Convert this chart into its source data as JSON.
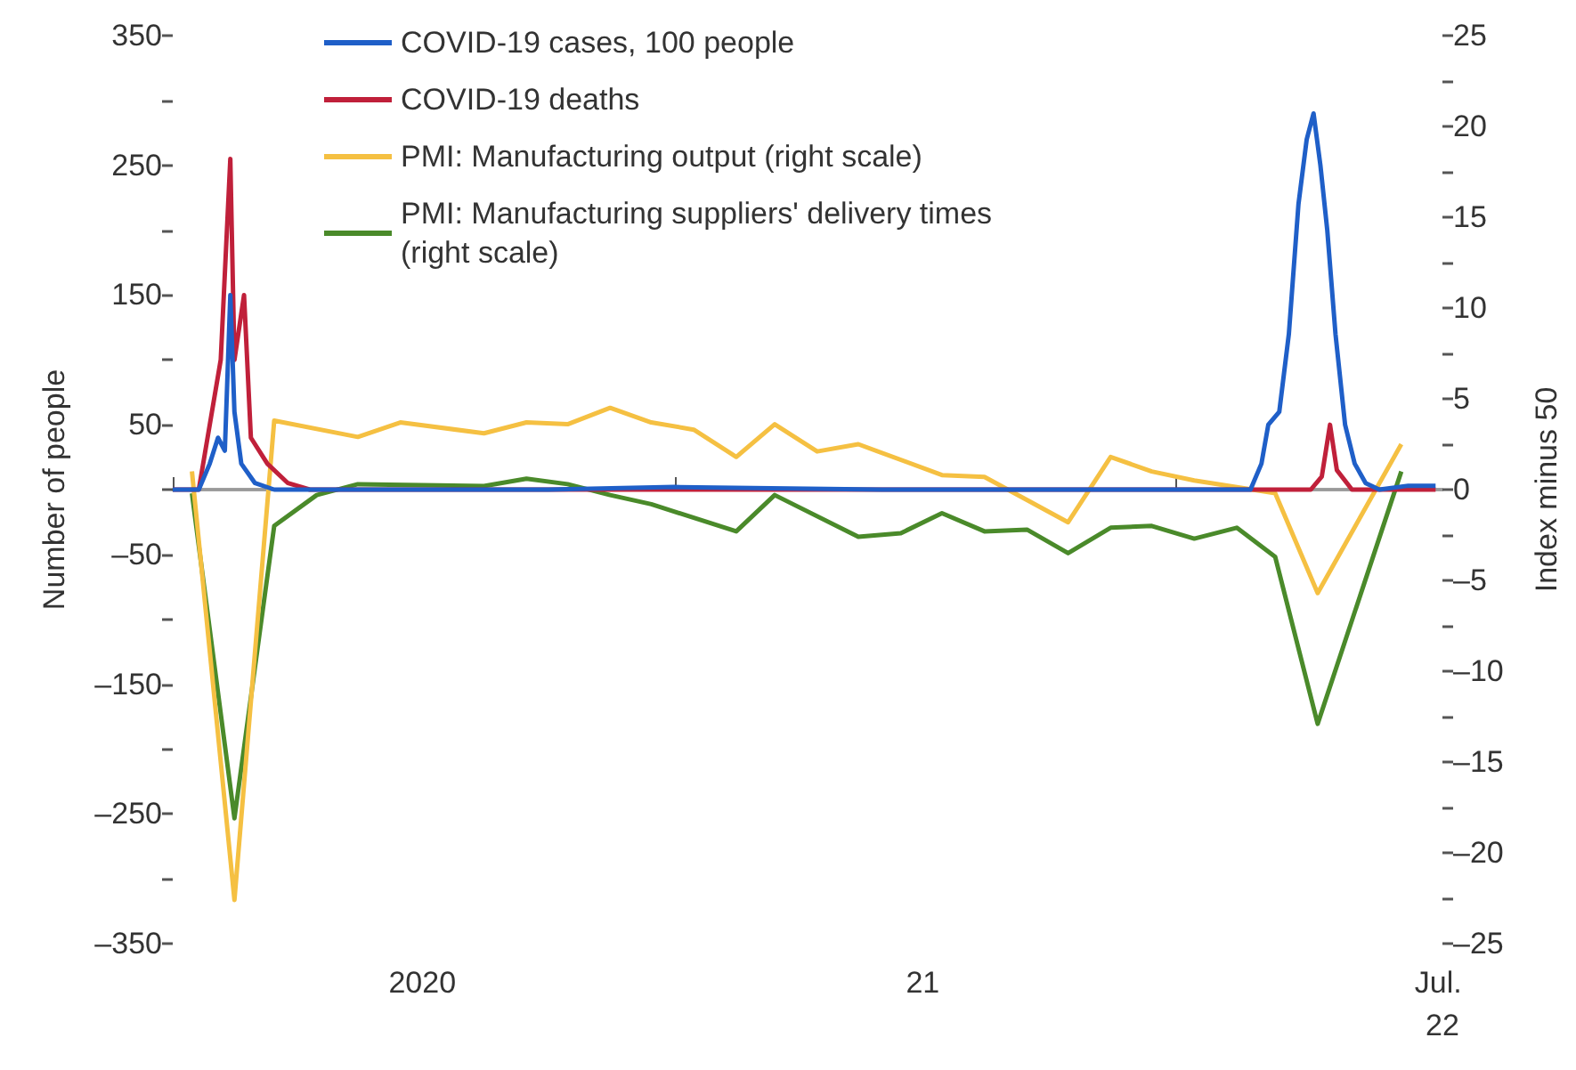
{
  "chart_data": {
    "type": "line",
    "xlabel": null,
    "ylabel": "Number of people",
    "y2label": "Index minus 50",
    "xlim": [
      "2020-01-01",
      "2022-07-15"
    ],
    "xticks": [
      {
        "value": "2020-01-01",
        "label": null
      },
      {
        "value": "2020-07-01",
        "label": "2020"
      },
      {
        "value": "2021-01-01",
        "label": null
      },
      {
        "value": "2021-07-01",
        "label": "21"
      },
      {
        "value": "2022-01-01",
        "label": null
      },
      {
        "value": "2022-07-15",
        "label": "Jul. 22"
      }
    ],
    "ylim": [
      -350,
      350
    ],
    "yticks": [
      {
        "value": -350,
        "label": "–350"
      },
      {
        "value": -300,
        "label": null
      },
      {
        "value": -250,
        "label": "–250"
      },
      {
        "value": -200,
        "label": null
      },
      {
        "value": -150,
        "label": "–150"
      },
      {
        "value": -100,
        "label": null
      },
      {
        "value": -50,
        "label": "–50"
      },
      {
        "value": 0,
        "label": null
      },
      50,
      {
        "value": 100,
        "label": null
      },
      150,
      {
        "value": 200,
        "label": null
      },
      250,
      {
        "value": 300,
        "label": null
      },
      350
    ],
    "y2lim": [
      -25,
      25
    ],
    "y2ticks": [
      {
        "value": -25,
        "label": "–25"
      },
      {
        "value": -22.5,
        "label": null
      },
      {
        "value": -20,
        "label": "–20"
      },
      {
        "value": -17.5,
        "label": null
      },
      {
        "value": -15,
        "label": "–15"
      },
      {
        "value": -12.5,
        "label": null
      },
      {
        "value": -10,
        "label": "–10"
      },
      {
        "value": -7.5,
        "label": null
      },
      {
        "value": -5,
        "label": "–5"
      },
      {
        "value": -2.5,
        "label": null
      },
      0,
      {
        "value": 2.5,
        "label": null
      },
      5,
      {
        "value": 7.5,
        "label": null
      },
      10,
      {
        "value": 12.5,
        "label": null
      },
      15,
      {
        "value": 17.5,
        "label": null
      },
      20,
      {
        "value": 22.5,
        "label": null
      },
      25
    ],
    "legend": "top left",
    "grid": false,
    "ref_lines": [
      {
        "axis": "y",
        "value": 0,
        "label": null,
        "color": "#999999"
      }
    ],
    "series": [
      {
        "name": "COVID-19 cases, 100 people",
        "color": "#1f5fc8",
        "x": [
          "2020-01-01",
          "2020-01-20",
          "2020-01-28",
          "2020-02-03",
          "2020-02-08",
          "2020-02-12",
          "2020-02-15",
          "2020-02-20",
          "2020-03-01",
          "2020-03-15",
          "2020-10-01",
          "2021-01-01",
          "2021-06-01",
          "2022-02-25",
          "2022-03-05",
          "2022-03-10",
          "2022-03-18",
          "2022-03-25",
          "2022-04-01",
          "2022-04-07",
          "2022-04-12",
          "2022-04-17",
          "2022-04-22",
          "2022-04-28",
          "2022-05-05",
          "2022-05-12",
          "2022-05-20",
          "2022-05-30",
          "2022-06-20",
          "2022-07-10"
        ],
        "values": [
          0,
          0,
          20,
          40,
          30,
          150,
          60,
          20,
          5,
          0,
          0,
          2,
          0,
          0,
          20,
          50,
          60,
          120,
          220,
          270,
          290,
          250,
          200,
          120,
          50,
          20,
          5,
          0,
          3,
          3
        ]
      },
      {
        "name": "COVID-19 deaths",
        "color": "#c0203a",
        "x": [
          "2020-01-01",
          "2020-01-20",
          "2020-01-28",
          "2020-02-05",
          "2020-02-12",
          "2020-02-15",
          "2020-02-22",
          "2020-02-27",
          "2020-03-10",
          "2020-03-25",
          "2020-04-10",
          "2022-04-10",
          "2022-04-18",
          "2022-04-24",
          "2022-04-29",
          "2022-05-10",
          "2022-07-10"
        ],
        "values": [
          0,
          0,
          50,
          100,
          255,
          100,
          150,
          40,
          20,
          5,
          0,
          0,
          10,
          50,
          15,
          0,
          0
        ]
      },
      {
        "name": "PMI: Manufacturing output (right scale)",
        "color": "#f5c042",
        "axis": "y2",
        "x": [
          "2020-01-15",
          "2020-02-15",
          "2020-03-15",
          "2020-05-15",
          "2020-06-15",
          "2020-08-15",
          "2020-09-15",
          "2020-10-15",
          "2020-11-15",
          "2020-12-15",
          "2021-01-15",
          "2021-02-15",
          "2021-03-15",
          "2021-04-15",
          "2021-05-15",
          "2021-07-15",
          "2021-08-15",
          "2021-10-15",
          "2021-11-15",
          "2021-12-15",
          "2022-01-15",
          "2022-03-15",
          "2022-04-15",
          "2022-06-15"
        ],
        "values": [
          1.0,
          -22.6,
          3.8,
          2.9,
          3.7,
          3.1,
          3.7,
          3.6,
          4.5,
          3.7,
          3.3,
          1.8,
          3.6,
          2.1,
          2.5,
          0.8,
          0.7,
          -1.8,
          1.8,
          1.0,
          0.5,
          -0.2,
          -5.7,
          2.5
        ]
      },
      {
        "name": "PMI: Manufacturing suppliers' delivery times (right scale)",
        "color": "#4a8a2a",
        "axis": "y2",
        "x": [
          "2020-01-15",
          "2020-02-15",
          "2020-03-15",
          "2020-04-15",
          "2020-05-15",
          "2020-08-15",
          "2020-09-15",
          "2020-10-15",
          "2020-11-15",
          "2020-12-15",
          "2021-02-15",
          "2021-03-15",
          "2021-05-15",
          "2021-06-15",
          "2021-07-15",
          "2021-08-15",
          "2021-09-15",
          "2021-10-15",
          "2021-11-15",
          "2021-12-15",
          "2022-01-15",
          "2022-02-15",
          "2022-03-15",
          "2022-04-15",
          "2022-06-15"
        ],
        "values": [
          -0.2,
          -18.1,
          -2.0,
          -0.3,
          0.3,
          0.2,
          0.6,
          0.3,
          -0.3,
          -0.8,
          -2.3,
          -0.3,
          -2.6,
          -2.4,
          -1.3,
          -2.3,
          -2.2,
          -3.5,
          -2.1,
          -2.0,
          -2.7,
          -2.1,
          -3.7,
          -12.9,
          1.0
        ]
      }
    ]
  }
}
